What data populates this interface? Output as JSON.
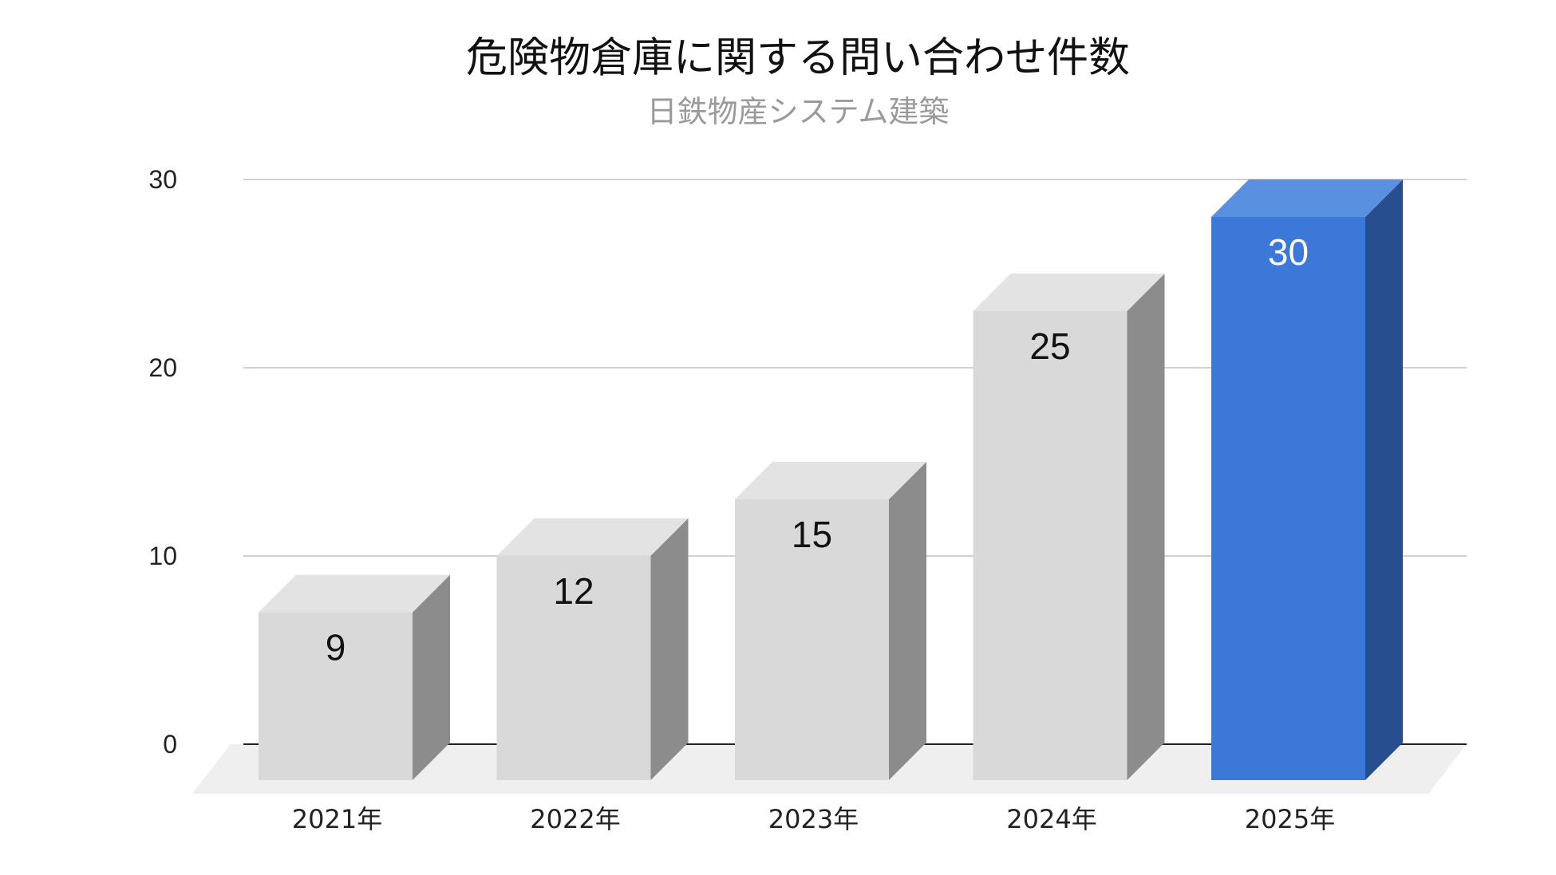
{
  "chart_data": {
    "type": "bar",
    "title": "危険物倉庫に関する問い合わせ件数",
    "subtitle": "日鉄物産システム建築",
    "categories": [
      "2021年",
      "2022年",
      "2023年",
      "2024年",
      "2025年"
    ],
    "values": [
      9,
      12,
      15,
      25,
      30
    ],
    "yticks": [
      "0",
      "10",
      "20",
      "30"
    ],
    "ylim": [
      0,
      30
    ],
    "grid": true,
    "legend": "none",
    "style": "3d-column",
    "colors": {
      "default_front": "#d9d9d9",
      "default_top": "#e3e3e3",
      "default_side": "#8c8c8c",
      "highlight_front": "#3c78d8",
      "highlight_top": "#5a90e0",
      "highlight_side": "#274f8f",
      "gridline": "#d0d0d0",
      "axis": "#222222",
      "floor": "#efefef"
    },
    "highlight_index": 4
  }
}
